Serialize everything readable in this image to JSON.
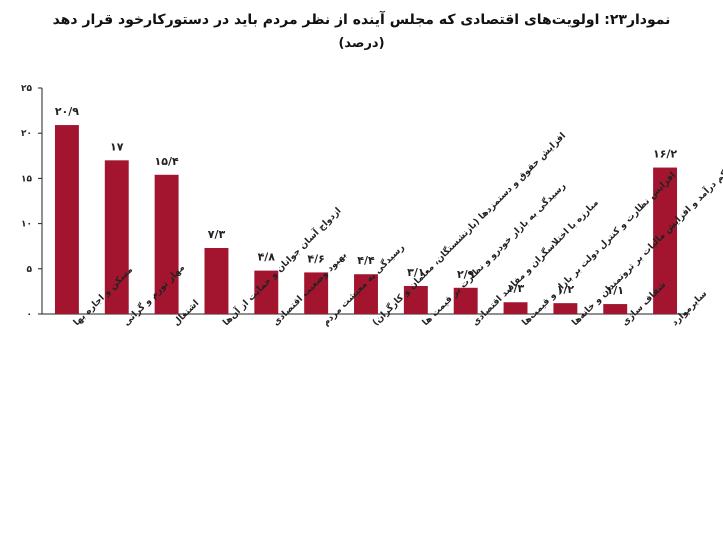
{
  "chart_data": {
    "type": "bar",
    "title": "نمودار۲۳: اولویت‌های اقتصادی که مجلس آینده از نظر مردم باید در دستورکارخود قرار دهد",
    "subtitle": "(درصد)",
    "categories": [
      "مسکن و اجاره بها",
      "مهار تورم و گرانی",
      "اشتغال",
      "ازدواج آسان جوانان و حمایت از آن‌ها",
      "بهبود وضعیت اقتصادی",
      "رسیدگی به معیشت مردم",
      "افزایش حقوق و دستمزدها (بازنشستگان، معلمان و کارگران)",
      "رسیدگی به بازار خودرو و نظارت بر قیمت ها",
      "مبارزه با اختلاسگران و مفاسد اقتصادی",
      "افزایش نظارت و کنترل دولت بر بازار و قیمت‌ها",
      "کاهش مالیات اصناف کم درآمد و افزایش مالیات بر ثروتمندان و خانه‌ها",
      "شفاف سازی",
      "سایرموارد"
    ],
    "values": [
      20.9,
      17,
      15.4,
      7.3,
      4.8,
      4.6,
      4.4,
      3.1,
      2.9,
      1.3,
      1.2,
      1.1,
      16.2
    ],
    "value_labels": [
      "۲۰/۹",
      "۱۷",
      "۱۵/۴",
      "۷/۳",
      "۴/۸",
      "۴/۶",
      "۴/۴",
      "۳/۱",
      "۲/۹",
      "۱/۳",
      "۱/۲",
      "۱/۱",
      "۱۶/۲"
    ],
    "yticks": [
      0,
      5,
      10,
      15,
      20,
      25
    ],
    "ytick_labels": [
      "۰",
      "۵",
      "۱۰",
      "۱۵",
      "۲۰",
      "۲۵"
    ],
    "ylim": [
      0,
      25
    ],
    "bar_color": "#a3152f",
    "grid": false,
    "legend": "none"
  }
}
